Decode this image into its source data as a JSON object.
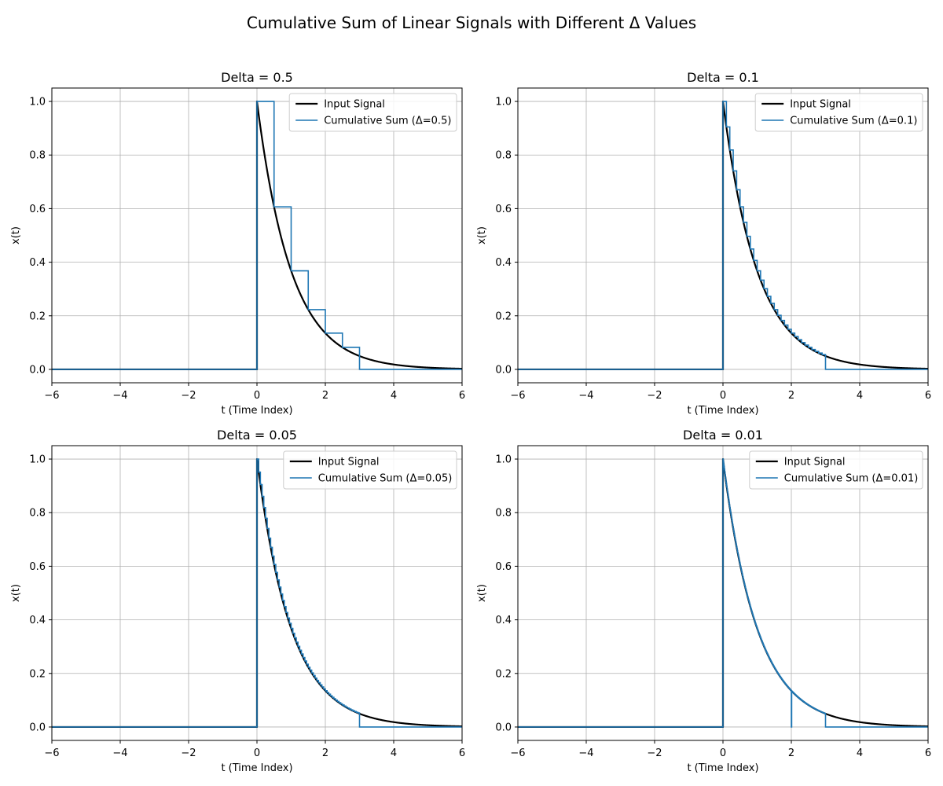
{
  "figure_title": "Cumulative Sum of Linear Signals with Different Δ Values",
  "colors": {
    "input_signal": "#000000",
    "cumulative_sum": "#1f77b4",
    "grid": "#b0b0b0",
    "background": "#ffffff"
  },
  "chart_data": [
    {
      "type": "line",
      "title": "Delta = 0.5",
      "xlabel": "t (Time Index)",
      "ylabel": "x(t)",
      "xlim": [
        -6,
        6
      ],
      "ylim": [
        -0.05,
        1.05
      ],
      "xticks": [
        -6,
        -4,
        -2,
        0,
        2,
        4,
        6
      ],
      "xtick_labels": [
        "−6",
        "−4",
        "−2",
        "0",
        "2",
        "4",
        "6"
      ],
      "yticks": [
        0.0,
        0.2,
        0.4,
        0.6,
        0.8,
        1.0
      ],
      "ytick_labels": [
        "0.0",
        "0.2",
        "0.4",
        "0.6",
        "0.8",
        "1.0"
      ],
      "grid": true,
      "legend_position": "top-right",
      "delta": 0.5,
      "series": [
        {
          "name": "Input Signal",
          "kind": "exp(-t) for t >= 0, 0 otherwise",
          "color": "#000000",
          "width": 2
        },
        {
          "name": "Cumulative Sum (Δ=0.5)",
          "kind": "step approximation, zero for t >= 3",
          "color": "#1f77b4",
          "width": 1.5
        }
      ]
    },
    {
      "type": "line",
      "title": "Delta = 0.1",
      "xlabel": "t (Time Index)",
      "ylabel": "x(t)",
      "xlim": [
        -6,
        6
      ],
      "ylim": [
        -0.05,
        1.05
      ],
      "xticks": [
        -6,
        -4,
        -2,
        0,
        2,
        4,
        6
      ],
      "xtick_labels": [
        "−6",
        "−4",
        "−2",
        "0",
        "2",
        "4",
        "6"
      ],
      "yticks": [
        0.0,
        0.2,
        0.4,
        0.6,
        0.8,
        1.0
      ],
      "ytick_labels": [
        "0.0",
        "0.2",
        "0.4",
        "0.6",
        "0.8",
        "1.0"
      ],
      "grid": true,
      "legend_position": "top-right",
      "delta": 0.1,
      "series": [
        {
          "name": "Input Signal",
          "kind": "exp(-t) for t >= 0, 0 otherwise",
          "color": "#000000",
          "width": 2
        },
        {
          "name": "Cumulative Sum (Δ=0.1)",
          "kind": "step approximation, zero for t >= 3",
          "color": "#1f77b4",
          "width": 1.5
        }
      ]
    },
    {
      "type": "line",
      "title": "Delta = 0.05",
      "xlabel": "t (Time Index)",
      "ylabel": "x(t)",
      "xlim": [
        -6,
        6
      ],
      "ylim": [
        -0.05,
        1.05
      ],
      "xticks": [
        -6,
        -4,
        -2,
        0,
        2,
        4,
        6
      ],
      "xtick_labels": [
        "−6",
        "−4",
        "−2",
        "0",
        "2",
        "4",
        "6"
      ],
      "yticks": [
        0.0,
        0.2,
        0.4,
        0.6,
        0.8,
        1.0
      ],
      "ytick_labels": [
        "0.0",
        "0.2",
        "0.4",
        "0.6",
        "0.8",
        "1.0"
      ],
      "grid": true,
      "legend_position": "top-right",
      "delta": 0.05,
      "series": [
        {
          "name": "Input Signal",
          "kind": "exp(-t) for t >= 0, 0 otherwise",
          "color": "#000000",
          "width": 2
        },
        {
          "name": "Cumulative Sum (Δ=0.05)",
          "kind": "step approximation, zero for t >= 3",
          "color": "#1f77b4",
          "width": 1.5
        }
      ]
    },
    {
      "type": "line",
      "title": "Delta = 0.01",
      "xlabel": "t (Time Index)",
      "ylabel": "x(t)",
      "xlim": [
        -6,
        6
      ],
      "ylim": [
        -0.05,
        1.05
      ],
      "xticks": [
        -6,
        -4,
        -2,
        0,
        2,
        4,
        6
      ],
      "xtick_labels": [
        "−6",
        "−4",
        "−2",
        "0",
        "2",
        "4",
        "6"
      ],
      "yticks": [
        0.0,
        0.2,
        0.4,
        0.6,
        0.8,
        1.0
      ],
      "ytick_labels": [
        "0.0",
        "0.2",
        "0.4",
        "0.6",
        "0.8",
        "1.0"
      ],
      "grid": true,
      "legend_position": "top-right",
      "delta": 0.01,
      "series": [
        {
          "name": "Input Signal",
          "kind": "exp(-t) for t >= 0, 0 otherwise",
          "color": "#000000",
          "width": 2
        },
        {
          "name": "Cumulative Sum (Δ=0.01)",
          "kind": "step approximation, zero for t >= 3, dip to 0 at t = 2",
          "color": "#1f77b4",
          "width": 1.5
        }
      ]
    }
  ]
}
